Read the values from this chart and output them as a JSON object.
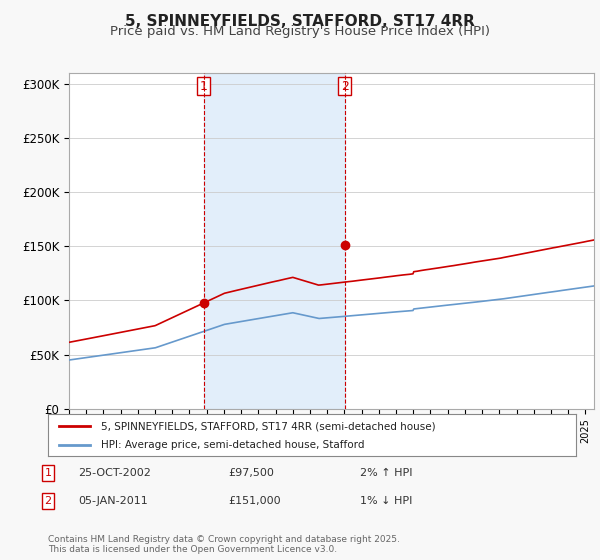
{
  "title": "5, SPINNEYFIELDS, STAFFORD, ST17 4RR",
  "subtitle": "Price paid vs. HM Land Registry's House Price Index (HPI)",
  "ylabel_ticks": [
    "£0",
    "£50K",
    "£100K",
    "£150K",
    "£200K",
    "£250K",
    "£300K"
  ],
  "ytick_values": [
    0,
    50000,
    100000,
    150000,
    200000,
    250000,
    300000
  ],
  "ylim": [
    0,
    310000
  ],
  "xlim_start": 1995.0,
  "xlim_end": 2025.5,
  "sale1_date": 2002.82,
  "sale1_price": 97500,
  "sale1_label": "1",
  "sale2_date": 2011.02,
  "sale2_price": 151000,
  "sale2_label": "2",
  "vspan1_start": 2002.82,
  "vspan2_start": 2011.02,
  "line1_color": "#cc0000",
  "line2_color": "#6699cc",
  "background_color": "#f0f4ff",
  "plot_bg": "#ffffff",
  "legend_line1": "5, SPINNEYFIELDS, STAFFORD, ST17 4RR (semi-detached house)",
  "legend_line2": "HPI: Average price, semi-detached house, Stafford",
  "annotation1": "25-OCT-2002        £97,500        2% ↑ HPI",
  "annotation2": "05-JAN-2011        £151,000        1% ↓ HPI",
  "footer": "Contains HM Land Registry data © Crown copyright and database right 2025.\nThis data is licensed under the Open Government Licence v3.0.",
  "title_fontsize": 11,
  "subtitle_fontsize": 9.5,
  "tick_fontsize": 8.5
}
